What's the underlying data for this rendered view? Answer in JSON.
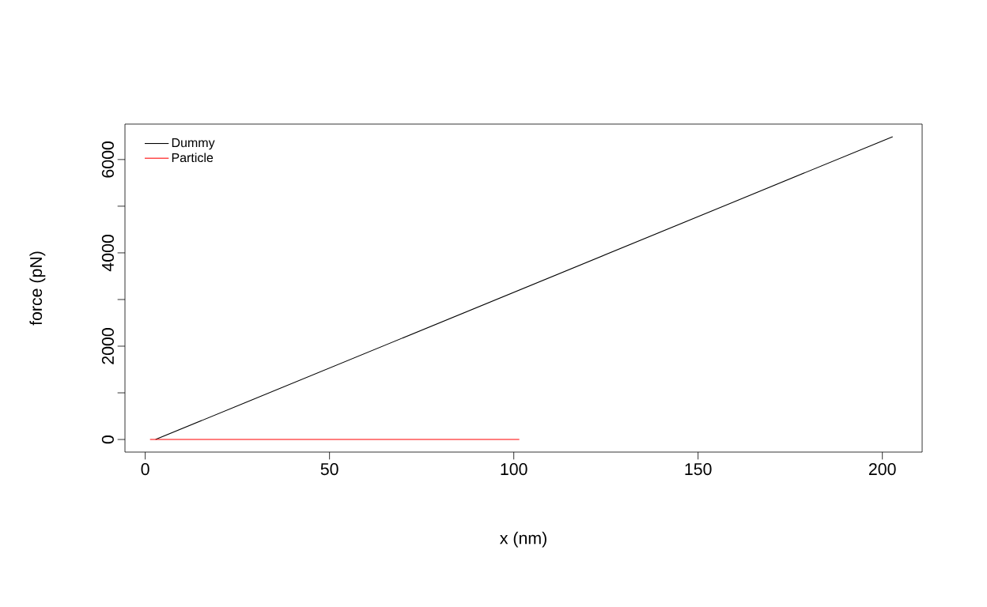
{
  "chart_data": {
    "type": "line",
    "xlabel": "x (nm)",
    "ylabel": "force (pN)",
    "series": [
      {
        "name": "Dummy",
        "color": "#000000",
        "x": [
          2.8,
          202.8
        ],
        "values": [
          0,
          6490
        ]
      },
      {
        "name": "Particle",
        "color": "#ff0000",
        "x": [
          1.3,
          101.5
        ],
        "values": [
          0,
          0
        ]
      }
    ],
    "xlim": [
      -5.5,
      210.8
    ],
    "ylim": [
      -270,
      6760
    ],
    "xticks": [
      0,
      50,
      100,
      150,
      200
    ],
    "yticks": [
      0,
      {
        "value": 1000,
        "label": null
      },
      2000,
      {
        "value": 3000,
        "label": null
      },
      4000,
      {
        "value": 5000,
        "label": null
      },
      6000
    ],
    "legend": "top left",
    "grid": false,
    "marker": "none",
    "line_style": "solid"
  }
}
